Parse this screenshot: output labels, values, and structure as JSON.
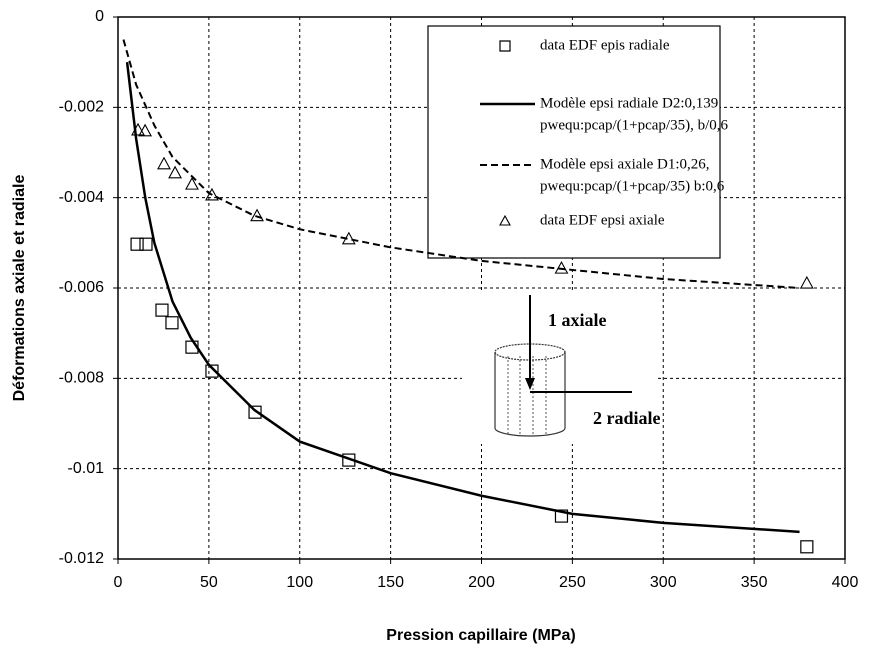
{
  "chart_data": {
    "type": "scatter-line",
    "x_label": "Pression capillaire (MPa)",
    "y_label": "Déformations  axiale et radiale",
    "xlim": [
      0,
      400
    ],
    "xticks": [
      0,
      50,
      100,
      150,
      200,
      250,
      300,
      350,
      400
    ],
    "ylim": [
      -0.012,
      0
    ],
    "yticks": [
      0,
      -0.002,
      -0.004,
      -0.006,
      -0.008,
      -0.01,
      -0.012
    ],
    "grid": true,
    "legend": "upper right",
    "annotations": [
      "1   axiale",
      "2  radiale"
    ],
    "series": [
      {
        "name": [
          "data EDF epis radiale"
        ],
        "type": "scatter",
        "marker": "square",
        "color": "#000000",
        "x": [
          10.5,
          15.4,
          24.2,
          29.7,
          40.7,
          51.7,
          75.4,
          127,
          244,
          379
        ],
        "values": [
          -0.00503,
          -0.00503,
          -0.00649,
          -0.00677,
          -0.00731,
          -0.00784,
          -0.00875,
          -0.00981,
          -0.01105,
          -0.01173
        ]
      },
      {
        "name": [
          "Modèle epsi radiale  D2:0,139",
          "pwequ:pcap/(1+pcap/35),  b/0,6"
        ],
        "type": "line",
        "dash": false,
        "color": "#000000",
        "x": [
          5,
          10,
          15,
          20,
          30,
          40,
          50,
          75,
          100,
          150,
          200,
          250,
          300,
          375
        ],
        "values": [
          -0.001,
          -0.0027,
          -0.004,
          -0.005,
          -0.0063,
          -0.0071,
          -0.0077,
          -0.0087,
          -0.0094,
          -0.0101,
          -0.0106,
          -0.011,
          -0.0112,
          -0.0114
        ]
      },
      {
        "name": [
          "Modèle epsi axiale  D1:0,26,",
          "pwequ:pcap/(1+pcap/35) b:0,6"
        ],
        "type": "line",
        "dash": true,
        "color": "#000000",
        "x": [
          3,
          10,
          20,
          30,
          40,
          50,
          75,
          100,
          150,
          200,
          250,
          300,
          375
        ],
        "values": [
          -0.0005,
          -0.0015,
          -0.0024,
          -0.0031,
          -0.0035,
          -0.0039,
          -0.0044,
          -0.0047,
          -0.0051,
          -0.0054,
          -0.0056,
          -0.0058,
          -0.006
        ]
      },
      {
        "name": [
          "data EDF epsi axiale"
        ],
        "type": "scatter",
        "marker": "triangle",
        "color": "#000000",
        "x": [
          11,
          14.9,
          25.3,
          31.4,
          40.7,
          51.7,
          76.5,
          127,
          244,
          379
        ],
        "values": [
          -0.0025,
          -0.00252,
          -0.00325,
          -0.00345,
          -0.0037,
          -0.00394,
          -0.0044,
          -0.00491,
          -0.00556,
          -0.00589
        ]
      }
    ]
  }
}
